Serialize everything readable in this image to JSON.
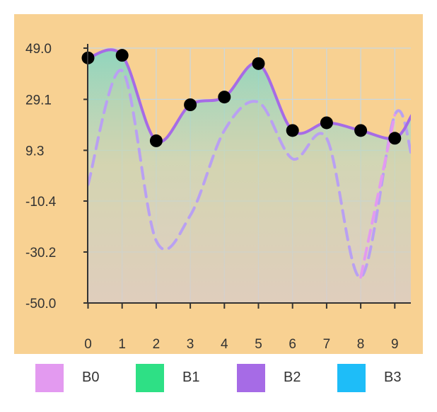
{
  "chart_data": {
    "type": "line",
    "x_ticks": [
      "0",
      "1",
      "2",
      "3",
      "4",
      "5",
      "6",
      "7",
      "8",
      "9"
    ],
    "y_ticks": [
      "49.0",
      "29.1",
      "9.3",
      "-10.4",
      "-30.2",
      "-50.0"
    ],
    "ylim": [
      -50.0,
      49.0
    ],
    "grid": true,
    "legend_position": "bottom",
    "background_color": "#f8d192",
    "series": [
      {
        "name": "B0",
        "color": "#e39af0",
        "style": "dashed",
        "x": [
          0,
          1,
          2,
          3,
          4,
          5,
          6,
          7,
          8,
          9,
          9.5
        ],
        "values": [
          -4.0,
          40.2,
          -25.8,
          -16.0,
          17.0,
          28.0,
          6.0,
          14.0,
          -40.0,
          23.0,
          7.0
        ]
      },
      {
        "name": "B1",
        "color": "#2ee085",
        "style": "area",
        "x": [
          0,
          1,
          2,
          3,
          4,
          5,
          6,
          7,
          8,
          9,
          9.5
        ],
        "values": [
          45.2,
          46.2,
          13.0,
          27.0,
          30.0,
          43.0,
          17.0,
          20.0,
          17.0,
          14.0,
          23.0
        ]
      },
      {
        "name": "B2",
        "color": "#a66be6",
        "style": "line-markers",
        "x": [
          0,
          1,
          2,
          3,
          4,
          5,
          6,
          7,
          8,
          9,
          9.5
        ],
        "values": [
          45.2,
          46.2,
          13.0,
          27.0,
          30.0,
          43.0,
          17.0,
          20.0,
          17.0,
          14.0,
          23.0
        ]
      },
      {
        "name": "B3",
        "color": "#1ebdf8",
        "style": "area",
        "x": [
          0,
          1,
          2,
          3,
          4,
          5,
          6,
          7,
          8,
          9,
          9.5
        ],
        "values": [
          -4.0,
          40.2,
          -25.8,
          -16.0,
          17.0,
          28.0,
          6.0,
          14.0,
          -40.0,
          23.0,
          7.0
        ]
      }
    ]
  }
}
